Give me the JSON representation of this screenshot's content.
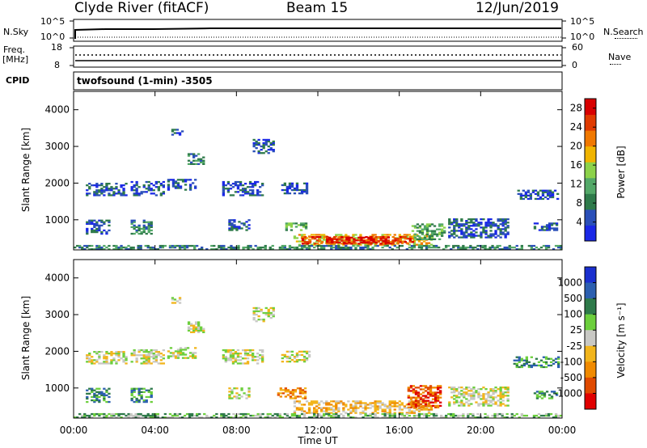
{
  "header": {
    "title": "Clyde River (fitACF)",
    "beam": "Beam 15",
    "date": "12/Jun/2019"
  },
  "top_panels": {
    "nsky_label": "N.Sky",
    "nsearch_label": "N.Search",
    "freq_label_1": "Freq.",
    "freq_label_2": "[MHz]",
    "cpid_label": "CPID",
    "nave_label": "Nave",
    "noise_ticks_left": [
      "10^5",
      "10^0"
    ],
    "noise_ticks_right": [
      "10^5",
      "10^0"
    ],
    "freq_ticks_left": [
      "18",
      "8"
    ],
    "nave_ticks_right": [
      "60",
      "0"
    ],
    "cpid_text": "twofsound (1-min) -3505"
  },
  "colors": {
    "power": [
      "#1a28e6",
      "#2a4fb8",
      "#2e7a4a",
      "#53a868",
      "#8cd24a",
      "#f0b400",
      "#f07800",
      "#e03a00",
      "#d80000"
    ],
    "velocity": [
      "#1a2fcf",
      "#2c5fb0",
      "#2e7a4a",
      "#6ccf3c",
      "#c8c8c4",
      "#f2b51c",
      "#f08a00",
      "#e04a00",
      "#e00000"
    ]
  },
  "chart_data": [
    {
      "type": "heatmap",
      "title": "",
      "xlabel": "Time UT",
      "ylabel": "Slant Range [km]",
      "xlim": [
        0,
        24
      ],
      "ylim": [
        180,
        4500
      ],
      "x_ticks": [
        "00:00",
        "04:00",
        "08:00",
        "12:00",
        "16:00",
        "20:00",
        "00:00"
      ],
      "y_ticks": [
        1000,
        2000,
        3000,
        4000
      ],
      "colorbar": {
        "label": "Power [dB]",
        "ticks": [
          4,
          8,
          12,
          16,
          20,
          24,
          28
        ],
        "range": [
          0,
          30
        ]
      },
      "regions": [
        {
          "t0": 0.6,
          "t1": 2.6,
          "r0": 1650,
          "r1": 2000,
          "level": 1
        },
        {
          "t0": 2.8,
          "t1": 4.4,
          "r0": 1650,
          "r1": 2050,
          "level": 1
        },
        {
          "t0": 4.6,
          "t1": 6.0,
          "r0": 1800,
          "r1": 2100,
          "level": 1
        },
        {
          "t0": 7.3,
          "t1": 9.3,
          "r0": 1650,
          "r1": 2050,
          "level": 1
        },
        {
          "t0": 10.2,
          "t1": 11.6,
          "r0": 1700,
          "r1": 2000,
          "level": 1
        },
        {
          "t0": 0.6,
          "t1": 1.8,
          "r0": 600,
          "r1": 1000,
          "level": 1
        },
        {
          "t0": 2.8,
          "t1": 3.8,
          "r0": 600,
          "r1": 1000,
          "level": 2
        },
        {
          "t0": 7.6,
          "t1": 8.6,
          "r0": 700,
          "r1": 1000,
          "level": 1
        },
        {
          "t0": 10.4,
          "t1": 11.4,
          "r0": 700,
          "r1": 900,
          "level": 3
        },
        {
          "t0": 10.8,
          "t1": 17.6,
          "r0": 300,
          "r1": 600,
          "level": 5
        },
        {
          "t0": 11.2,
          "t1": 16.6,
          "r0": 330,
          "r1": 550,
          "level": 7
        },
        {
          "t0": 12.4,
          "t1": 15.4,
          "r0": 360,
          "r1": 500,
          "level": 8
        },
        {
          "t0": 16.6,
          "t1": 18.2,
          "r0": 450,
          "r1": 900,
          "level": 3
        },
        {
          "t0": 18.4,
          "t1": 21.4,
          "r0": 500,
          "r1": 1000,
          "level": 1
        },
        {
          "t0": 21.8,
          "t1": 23.8,
          "r0": 1550,
          "r1": 1800,
          "level": 1
        },
        {
          "t0": 22.6,
          "t1": 23.8,
          "r0": 700,
          "r1": 900,
          "level": 1
        },
        {
          "t0": 4.8,
          "t1": 5.4,
          "r0": 3300,
          "r1": 3450,
          "level": 1
        },
        {
          "t0": 5.6,
          "t1": 6.4,
          "r0": 2500,
          "r1": 2800,
          "level": 2
        },
        {
          "t0": 8.8,
          "t1": 9.8,
          "r0": 2800,
          "r1": 3200,
          "level": 1
        },
        {
          "t0": 0.0,
          "t1": 24.0,
          "r0": 180,
          "r1": 300,
          "level": 2
        }
      ]
    },
    {
      "type": "heatmap",
      "title": "",
      "xlabel": "Time UT",
      "ylabel": "Slant Range [km]",
      "xlim": [
        0,
        24
      ],
      "ylim": [
        180,
        4500
      ],
      "x_ticks": [
        "00:00",
        "04:00",
        "08:00",
        "12:00",
        "16:00",
        "20:00",
        "00:00"
      ],
      "y_ticks": [
        1000,
        2000,
        3000,
        4000
      ],
      "colorbar": {
        "label": "Velocity [m s⁻¹]",
        "ticks": [
          "1000",
          "500",
          "100",
          "25",
          "-25",
          "-100",
          "-500",
          "-1000"
        ]
      },
      "regions": [
        {
          "t0": 0.6,
          "t1": 2.6,
          "r0": 1650,
          "r1": 2000,
          "level": 4
        },
        {
          "t0": 2.8,
          "t1": 4.4,
          "r0": 1650,
          "r1": 2050,
          "level": 4
        },
        {
          "t0": 4.6,
          "t1": 6.0,
          "r0": 1800,
          "r1": 2100,
          "level": 4
        },
        {
          "t0": 7.3,
          "t1": 9.3,
          "r0": 1650,
          "r1": 2050,
          "level": 4
        },
        {
          "t0": 10.2,
          "t1": 11.6,
          "r0": 1700,
          "r1": 2000,
          "level": 4
        },
        {
          "t0": 0.6,
          "t1": 1.8,
          "r0": 600,
          "r1": 1000,
          "level": 2
        },
        {
          "t0": 2.8,
          "t1": 3.8,
          "r0": 600,
          "r1": 1000,
          "level": 2
        },
        {
          "t0": 7.6,
          "t1": 8.6,
          "r0": 700,
          "r1": 1000,
          "level": 4
        },
        {
          "t0": 10.0,
          "t1": 11.4,
          "r0": 700,
          "r1": 1000,
          "level": 6
        },
        {
          "t0": 10.8,
          "t1": 17.6,
          "r0": 300,
          "r1": 650,
          "level": 5
        },
        {
          "t0": 16.4,
          "t1": 18.0,
          "r0": 450,
          "r1": 1050,
          "level": 7
        },
        {
          "t0": 18.4,
          "t1": 21.4,
          "r0": 500,
          "r1": 1000,
          "level": 4
        },
        {
          "t0": 21.6,
          "t1": 23.8,
          "r0": 1550,
          "r1": 1850,
          "level": 2
        },
        {
          "t0": 22.6,
          "t1": 23.8,
          "r0": 700,
          "r1": 900,
          "level": 2
        },
        {
          "t0": 4.8,
          "t1": 5.4,
          "r0": 3300,
          "r1": 3450,
          "level": 4
        },
        {
          "t0": 5.6,
          "t1": 6.4,
          "r0": 2500,
          "r1": 2800,
          "level": 4
        },
        {
          "t0": 8.8,
          "t1": 9.8,
          "r0": 2800,
          "r1": 3200,
          "level": 4
        },
        {
          "t0": 0.0,
          "t1": 24.0,
          "r0": 180,
          "r1": 300,
          "level": 3
        }
      ]
    }
  ]
}
